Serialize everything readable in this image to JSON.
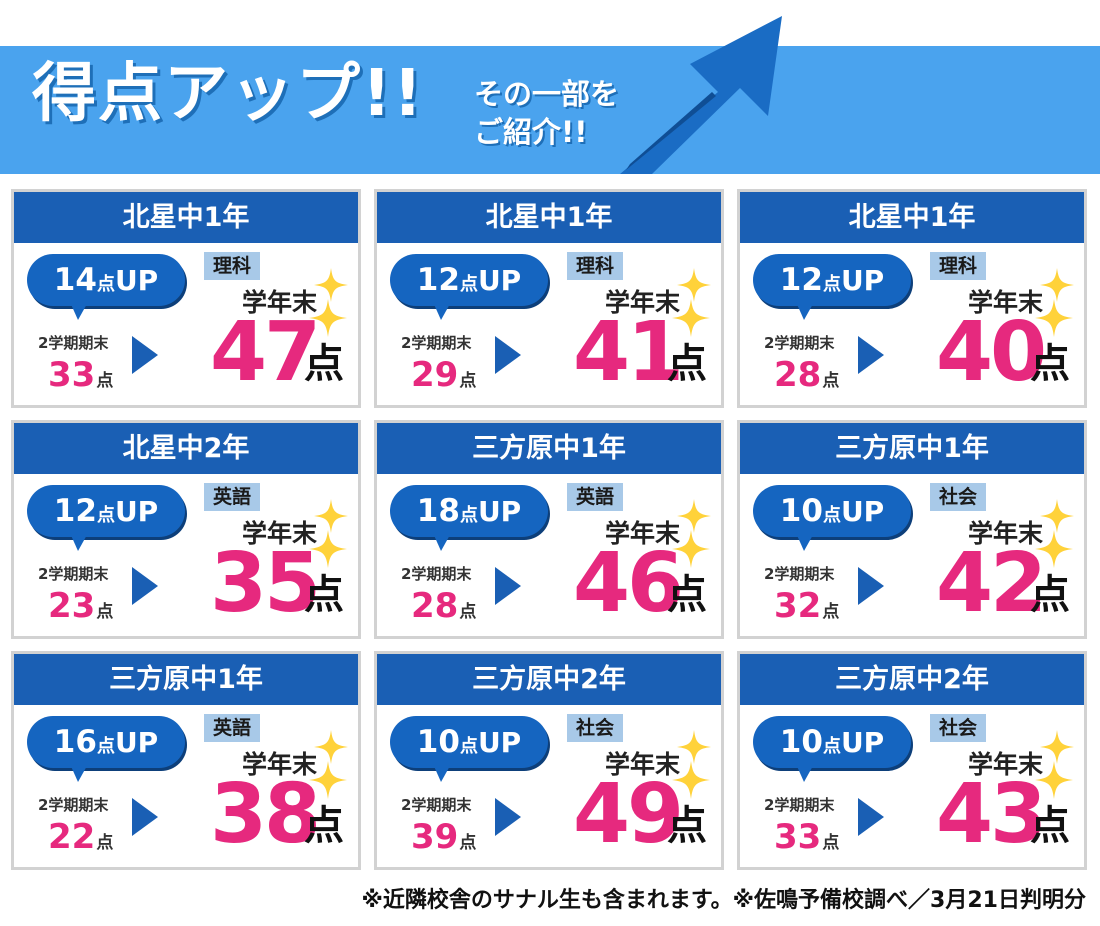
{
  "banner": {
    "title": "得点アップ!!",
    "sub_line1": "その一部を",
    "sub_line2": "ご紹介!!",
    "color": "#4aa3ee",
    "arrow_color": "#1a6cc4"
  },
  "labels": {
    "up": "UP",
    "pt": "点",
    "before": "2学期期末",
    "term_end": "学年末"
  },
  "colors": {
    "header": "#1a5fb4",
    "score_pink": "#e6297e",
    "subject_bg": "#a8c9e8",
    "sparkle": "#ffd23a"
  },
  "cards": [
    {
      "school": "北星中1年",
      "up": "14",
      "subject": "理科",
      "before": "33",
      "after": "47"
    },
    {
      "school": "北星中1年",
      "up": "12",
      "subject": "理科",
      "before": "29",
      "after": "41"
    },
    {
      "school": "北星中1年",
      "up": "12",
      "subject": "理科",
      "before": "28",
      "after": "40"
    },
    {
      "school": "北星中2年",
      "up": "12",
      "subject": "英語",
      "before": "23",
      "after": "35"
    },
    {
      "school": "三方原中1年",
      "up": "18",
      "subject": "英語",
      "before": "28",
      "after": "46"
    },
    {
      "school": "三方原中1年",
      "up": "10",
      "subject": "社会",
      "before": "32",
      "after": "42"
    },
    {
      "school": "三方原中1年",
      "up": "16",
      "subject": "英語",
      "before": "22",
      "after": "38"
    },
    {
      "school": "三方原中2年",
      "up": "10",
      "subject": "社会",
      "before": "39",
      "after": "49"
    },
    {
      "school": "三方原中2年",
      "up": "10",
      "subject": "社会",
      "before": "33",
      "after": "43"
    }
  ],
  "footnote": "※近隣校舎のサナル生も含まれます。※佐鳴予備校調べ／3月21日判明分"
}
